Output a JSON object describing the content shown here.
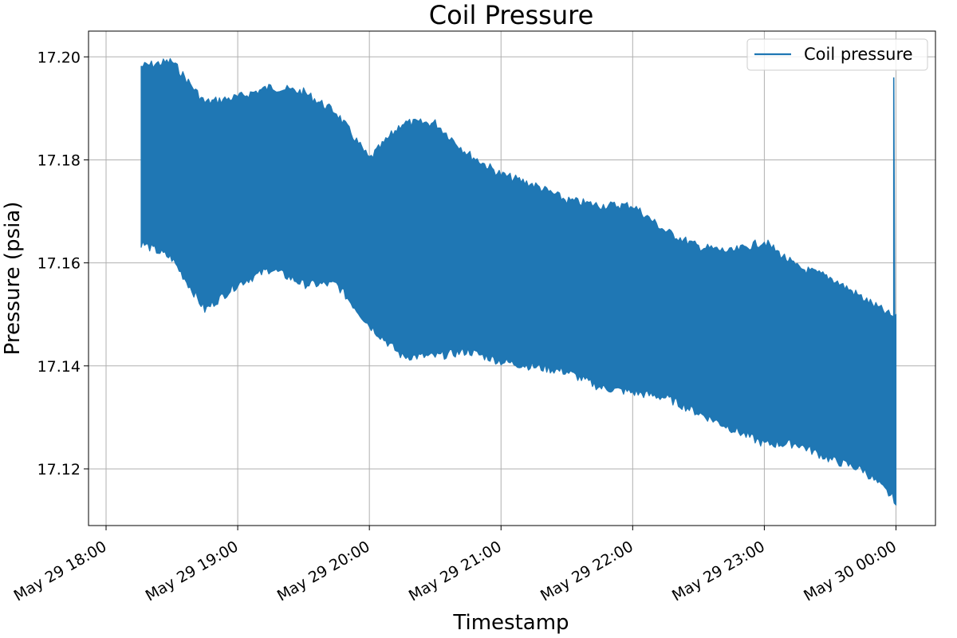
{
  "chart_data": {
    "type": "line",
    "title": "Coil Pressure",
    "xlabel": "Timestamp",
    "ylabel": "Pressure (psia)",
    "xlim": [
      "2024-05-29T17:52:00",
      "2024-05-30T00:18:00"
    ],
    "ylim": [
      17.109,
      17.205
    ],
    "x_ticks": [
      {
        "t": "2024-05-29T18:00:00",
        "label": "May 29 18:00"
      },
      {
        "t": "2024-05-29T19:00:00",
        "label": "May 29 19:00"
      },
      {
        "t": "2024-05-29T20:00:00",
        "label": "May 29 20:00"
      },
      {
        "t": "2024-05-29T21:00:00",
        "label": "May 29 21:00"
      },
      {
        "t": "2024-05-29T22:00:00",
        "label": "May 29 22:00"
      },
      {
        "t": "2024-05-29T23:00:00",
        "label": "May 29 23:00"
      },
      {
        "t": "2024-05-30T00:00:00",
        "label": "May 30 00:00"
      }
    ],
    "y_ticks": [
      {
        "v": 17.12,
        "label": "17.12"
      },
      {
        "v": 17.14,
        "label": "17.14"
      },
      {
        "v": 17.16,
        "label": "17.16"
      },
      {
        "v": 17.18,
        "label": "17.18"
      },
      {
        "v": 17.2,
        "label": "17.20"
      }
    ],
    "grid": true,
    "legend": {
      "placement": "upper-right"
    },
    "series": [
      {
        "name": "Coil pressure",
        "color": "#1f77b4",
        "x": [
          "2024-05-29T18:16:00",
          "2024-05-29T18:30:00",
          "2024-05-29T18:45:00",
          "2024-05-29T19:00:00",
          "2024-05-29T19:15:00",
          "2024-05-29T19:30:00",
          "2024-05-29T19:45:00",
          "2024-05-29T20:00:00",
          "2024-05-29T20:15:00",
          "2024-05-29T20:30:00",
          "2024-05-29T20:45:00",
          "2024-05-29T21:00:00",
          "2024-05-29T21:15:00",
          "2024-05-29T21:30:00",
          "2024-05-29T21:45:00",
          "2024-05-29T22:00:00",
          "2024-05-29T22:15:00",
          "2024-05-29T22:30:00",
          "2024-05-29T22:45:00",
          "2024-05-29T23:00:00",
          "2024-05-29T23:15:00",
          "2024-05-29T23:30:00",
          "2024-05-29T23:45:00",
          "2024-05-30T00:00:00"
        ],
        "y": [
          17.179,
          17.179,
          17.176,
          17.173,
          17.175,
          17.173,
          17.171,
          17.165,
          17.163,
          17.164,
          17.162,
          17.16,
          17.158,
          17.155,
          17.153,
          17.152,
          17.15,
          17.148,
          17.145,
          17.142,
          17.14,
          17.139,
          17.138,
          17.135
        ],
        "y_min": [
          17.163,
          17.16,
          17.15,
          17.155,
          17.158,
          17.155,
          17.155,
          17.147,
          17.141,
          17.141,
          17.142,
          17.14,
          17.139,
          17.138,
          17.135,
          17.134,
          17.133,
          17.13,
          17.127,
          17.124,
          17.124,
          17.121,
          17.119,
          17.113
        ],
        "y_max": [
          17.199,
          17.2,
          17.192,
          17.193,
          17.195,
          17.194,
          17.19,
          17.181,
          17.188,
          17.188,
          17.182,
          17.178,
          17.176,
          17.173,
          17.172,
          17.172,
          17.167,
          17.164,
          17.163,
          17.165,
          17.16,
          17.158,
          17.154,
          17.15
        ],
        "spike": {
          "x": "2024-05-29T23:59:00",
          "y": 17.196
        }
      }
    ]
  }
}
